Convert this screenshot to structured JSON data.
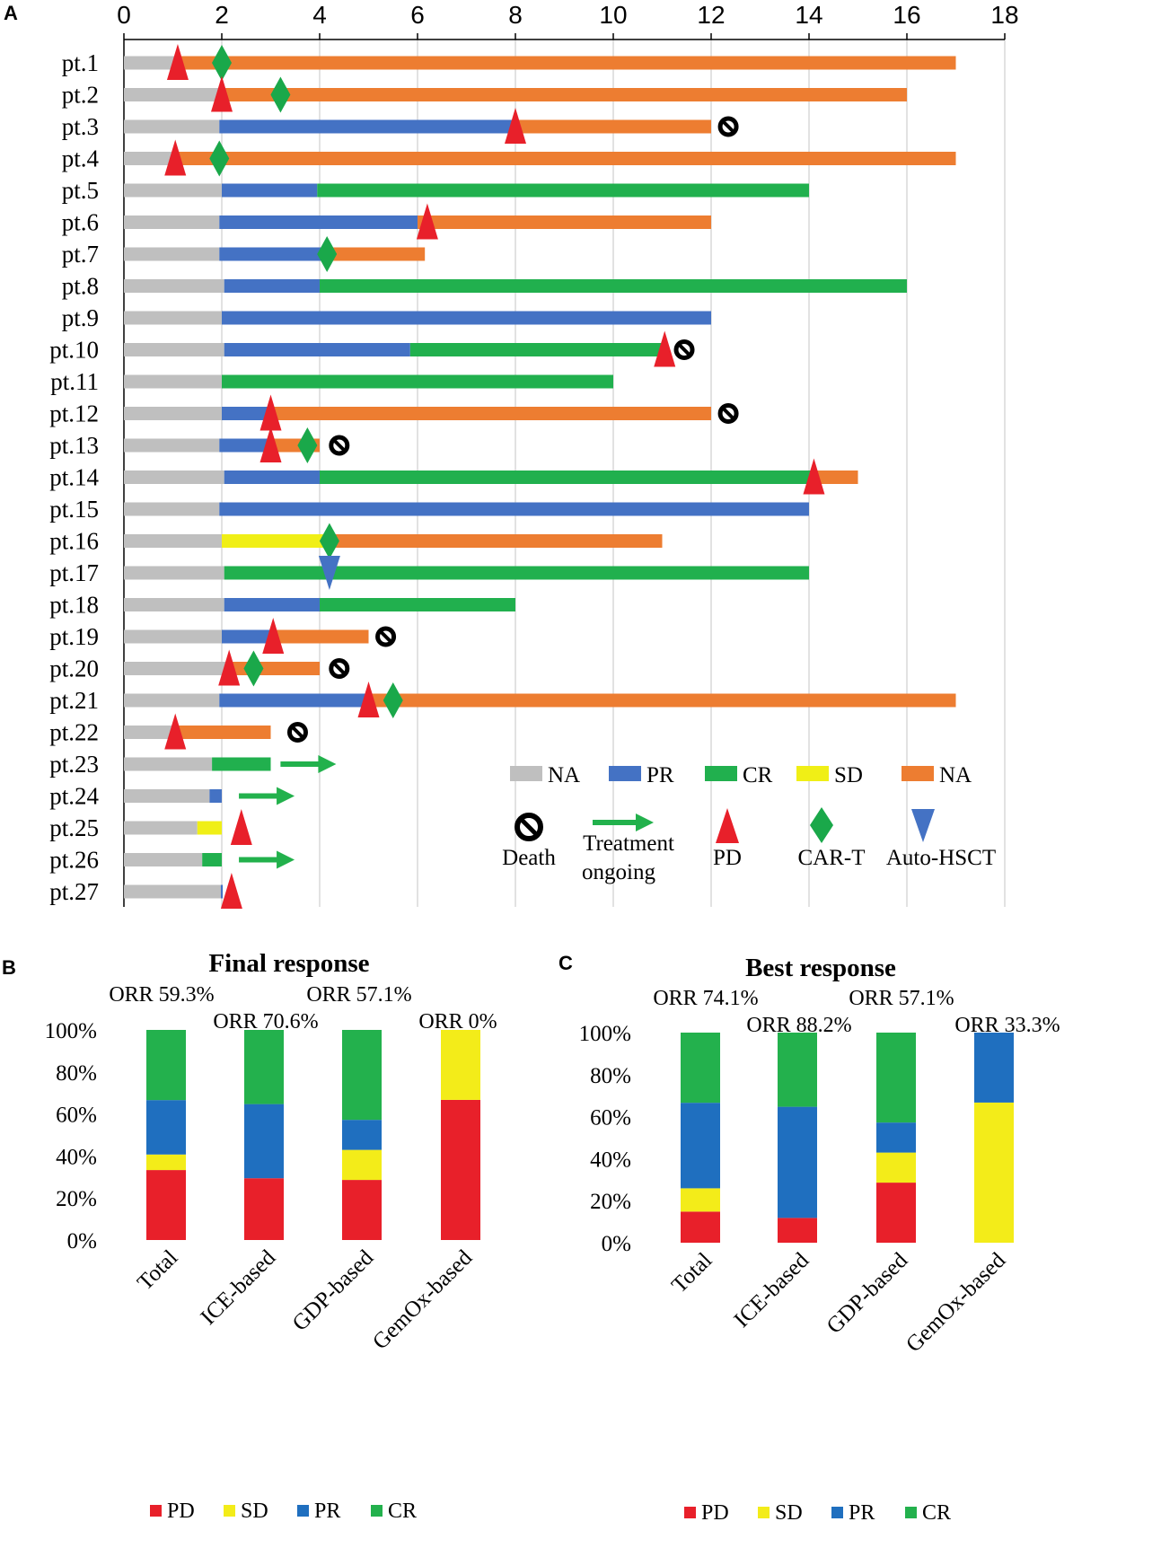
{
  "panels": {
    "a": "A",
    "b": "B",
    "c": "C"
  },
  "colors": {
    "NA_gray": "#bfbfbf",
    "PR": "#4472c4",
    "CR": "#21b04e",
    "SD": "#f0ef16",
    "NA_orange": "#ed7d31",
    "PD": "#e8202a",
    "CART": "#1aa84a",
    "AutoHSCT": "#4472c4",
    "PR_bar": "#1f6fbf",
    "PD_bar": "#e8202a",
    "CR_bar": "#23b14d",
    "SD_bar": "#f3ec19"
  },
  "chart_data": [
    {
      "type": "timeline",
      "panel": "A",
      "x_ticks": [
        "0",
        "2",
        "4",
        "6",
        "8",
        "10",
        "12",
        "14",
        "16",
        "18"
      ],
      "xlim": [
        0,
        18
      ],
      "patients": [
        {
          "label": "pt.1",
          "segments": [
            {
              "s": "NA_gray",
              "from": 0,
              "to": 1.05
            },
            {
              "s": "NA_orange",
              "from": 1.05,
              "to": 17
            }
          ],
          "markers": [
            {
              "type": "PD",
              "x": 1.1
            },
            {
              "type": "CART",
              "x": 2.0
            }
          ]
        },
        {
          "label": "pt.2",
          "segments": [
            {
              "s": "NA_gray",
              "from": 0,
              "to": 2.0
            },
            {
              "s": "NA_orange",
              "from": 2.0,
              "to": 16
            }
          ],
          "markers": [
            {
              "type": "PD",
              "x": 2.0
            },
            {
              "type": "CART",
              "x": 3.2
            }
          ]
        },
        {
          "label": "pt.3",
          "segments": [
            {
              "s": "NA_gray",
              "from": 0,
              "to": 1.95
            },
            {
              "s": "PR",
              "from": 1.95,
              "to": 8
            },
            {
              "s": "NA_orange",
              "from": 8,
              "to": 12
            }
          ],
          "markers": [
            {
              "type": "PD",
              "x": 8.0
            },
            {
              "type": "Death",
              "x": 12.35
            }
          ]
        },
        {
          "label": "pt.4",
          "segments": [
            {
              "s": "NA_gray",
              "from": 0,
              "to": 1.05
            },
            {
              "s": "NA_orange",
              "from": 1.05,
              "to": 17
            }
          ],
          "markers": [
            {
              "type": "PD",
              "x": 1.05
            },
            {
              "type": "CART",
              "x": 1.95
            }
          ]
        },
        {
          "label": "pt.5",
          "segments": [
            {
              "s": "NA_gray",
              "from": 0,
              "to": 2.0
            },
            {
              "s": "PR",
              "from": 2.0,
              "to": 3.95
            },
            {
              "s": "CR",
              "from": 3.95,
              "to": 14
            }
          ],
          "markers": []
        },
        {
          "label": "pt.6",
          "segments": [
            {
              "s": "NA_gray",
              "from": 0,
              "to": 1.95
            },
            {
              "s": "PR",
              "from": 1.95,
              "to": 6.0
            },
            {
              "s": "NA_orange",
              "from": 6.0,
              "to": 12
            }
          ],
          "markers": [
            {
              "type": "PD",
              "x": 6.2
            }
          ]
        },
        {
          "label": "pt.7",
          "segments": [
            {
              "s": "NA_gray",
              "from": 0,
              "to": 1.95
            },
            {
              "s": "PR",
              "from": 1.95,
              "to": 4.2
            },
            {
              "s": "NA_orange",
              "from": 4.2,
              "to": 6.15
            }
          ],
          "markers": [
            {
              "type": "CART",
              "x": 4.15
            }
          ]
        },
        {
          "label": "pt.8",
          "segments": [
            {
              "s": "NA_gray",
              "from": 0,
              "to": 2.05
            },
            {
              "s": "PR",
              "from": 2.05,
              "to": 4.0
            },
            {
              "s": "CR",
              "from": 4.0,
              "to": 16
            }
          ],
          "markers": []
        },
        {
          "label": "pt.9",
          "segments": [
            {
              "s": "NA_gray",
              "from": 0,
              "to": 2.0
            },
            {
              "s": "PR",
              "from": 2.0,
              "to": 12
            }
          ],
          "markers": []
        },
        {
          "label": "pt.10",
          "segments": [
            {
              "s": "NA_gray",
              "from": 0,
              "to": 2.05
            },
            {
              "s": "PR",
              "from": 2.05,
              "to": 5.85
            },
            {
              "s": "CR",
              "from": 5.85,
              "to": 11
            }
          ],
          "markers": [
            {
              "type": "PD",
              "x": 11.05
            },
            {
              "type": "Death",
              "x": 11.45
            }
          ]
        },
        {
          "label": "pt.11",
          "segments": [
            {
              "s": "NA_gray",
              "from": 0,
              "to": 2.0
            },
            {
              "s": "CR",
              "from": 2.0,
              "to": 10
            }
          ],
          "markers": []
        },
        {
          "label": "pt.12",
          "segments": [
            {
              "s": "NA_gray",
              "from": 0,
              "to": 2.0
            },
            {
              "s": "PR",
              "from": 2.0,
              "to": 3.0
            },
            {
              "s": "NA_orange",
              "from": 3.0,
              "to": 12
            }
          ],
          "markers": [
            {
              "type": "PD",
              "x": 3.0
            },
            {
              "type": "Death",
              "x": 12.35
            }
          ]
        },
        {
          "label": "pt.13",
          "segments": [
            {
              "s": "NA_gray",
              "from": 0,
              "to": 1.95
            },
            {
              "s": "PR",
              "from": 1.95,
              "to": 3.0
            },
            {
              "s": "NA_orange",
              "from": 3.0,
              "to": 4.0
            }
          ],
          "markers": [
            {
              "type": "PD",
              "x": 3.0
            },
            {
              "type": "CART",
              "x": 3.75
            },
            {
              "type": "Death",
              "x": 4.4
            }
          ]
        },
        {
          "label": "pt.14",
          "segments": [
            {
              "s": "NA_gray",
              "from": 0,
              "to": 2.05
            },
            {
              "s": "PR",
              "from": 2.05,
              "to": 4.0
            },
            {
              "s": "CR",
              "from": 4.0,
              "to": 14.1
            },
            {
              "s": "NA_orange",
              "from": 14.1,
              "to": 15
            }
          ],
          "markers": [
            {
              "type": "PD",
              "x": 14.1
            }
          ]
        },
        {
          "label": "pt.15",
          "segments": [
            {
              "s": "NA_gray",
              "from": 0,
              "to": 1.95
            },
            {
              "s": "PR",
              "from": 1.95,
              "to": 14
            }
          ],
          "markers": []
        },
        {
          "label": "pt.16",
          "segments": [
            {
              "s": "NA_gray",
              "from": 0,
              "to": 2.0
            },
            {
              "s": "SD",
              "from": 2.0,
              "to": 4.2
            },
            {
              "s": "NA_orange",
              "from": 4.2,
              "to": 11
            }
          ],
          "markers": [
            {
              "type": "CART",
              "x": 4.2
            }
          ]
        },
        {
          "label": "pt.17",
          "segments": [
            {
              "s": "NA_gray",
              "from": 0,
              "to": 2.05
            },
            {
              "s": "CR",
              "from": 2.05,
              "to": 14
            }
          ],
          "markers": [
            {
              "type": "AutoHSCT",
              "x": 4.2
            }
          ]
        },
        {
          "label": "pt.18",
          "segments": [
            {
              "s": "NA_gray",
              "from": 0,
              "to": 2.05
            },
            {
              "s": "PR",
              "from": 2.05,
              "to": 4.0
            },
            {
              "s": "CR",
              "from": 4.0,
              "to": 8
            }
          ],
          "markers": []
        },
        {
          "label": "pt.19",
          "segments": [
            {
              "s": "NA_gray",
              "from": 0,
              "to": 2.0
            },
            {
              "s": "PR",
              "from": 2.0,
              "to": 3.1
            },
            {
              "s": "NA_orange",
              "from": 3.1,
              "to": 5
            }
          ],
          "markers": [
            {
              "type": "PD",
              "x": 3.05
            },
            {
              "type": "Death",
              "x": 5.35
            }
          ]
        },
        {
          "label": "pt.20",
          "segments": [
            {
              "s": "NA_gray",
              "from": 0,
              "to": 2.15
            },
            {
              "s": "NA_orange",
              "from": 2.15,
              "to": 4
            }
          ],
          "markers": [
            {
              "type": "PD",
              "x": 2.15
            },
            {
              "type": "CART",
              "x": 2.65
            },
            {
              "type": "Death",
              "x": 4.4
            }
          ]
        },
        {
          "label": "pt.21",
          "segments": [
            {
              "s": "NA_gray",
              "from": 0,
              "to": 1.95
            },
            {
              "s": "PR",
              "from": 1.95,
              "to": 5.0
            },
            {
              "s": "NA_orange",
              "from": 5.0,
              "to": 17
            }
          ],
          "markers": [
            {
              "type": "PD",
              "x": 5.0
            },
            {
              "type": "CART",
              "x": 5.5
            }
          ]
        },
        {
          "label": "pt.22",
          "segments": [
            {
              "s": "NA_gray",
              "from": 0,
              "to": 1.05
            },
            {
              "s": "NA_orange",
              "from": 1.05,
              "to": 3
            }
          ],
          "markers": [
            {
              "type": "PD",
              "x": 1.05
            },
            {
              "type": "Death",
              "x": 3.55
            }
          ]
        },
        {
          "label": "pt.23",
          "segments": [
            {
              "s": "NA_gray",
              "from": 0,
              "to": 1.8
            },
            {
              "s": "CR",
              "from": 1.8,
              "to": 3
            }
          ],
          "markers": [
            {
              "type": "Ongoing",
              "x": 3.2
            }
          ]
        },
        {
          "label": "pt.24",
          "segments": [
            {
              "s": "NA_gray",
              "from": 0,
              "to": 1.75
            },
            {
              "s": "PR",
              "from": 1.75,
              "to": 2.0
            }
          ],
          "markers": [
            {
              "type": "Ongoing",
              "x": 2.35
            }
          ]
        },
        {
          "label": "pt.25",
          "segments": [
            {
              "s": "NA_gray",
              "from": 0,
              "to": 1.5
            },
            {
              "s": "SD",
              "from": 1.5,
              "to": 2.0
            }
          ],
          "markers": [
            {
              "type": "PD",
              "x": 2.4
            }
          ]
        },
        {
          "label": "pt.26",
          "segments": [
            {
              "s": "NA_gray",
              "from": 0,
              "to": 1.6
            },
            {
              "s": "CR",
              "from": 1.6,
              "to": 2.0
            }
          ],
          "markers": [
            {
              "type": "Ongoing",
              "x": 2.35
            }
          ]
        },
        {
          "label": "pt.27",
          "segments": [
            {
              "s": "NA_gray",
              "from": 0,
              "to": 1.98
            },
            {
              "s": "PR",
              "from": 1.98,
              "to": 2.02
            }
          ],
          "markers": [
            {
              "type": "PD",
              "x": 2.2
            }
          ]
        }
      ],
      "legend": {
        "NA_gray": "NA",
        "PR": "PR",
        "CR": "CR",
        "SD": "SD",
        "NA_orange": "NA",
        "Death": "Death",
        "Ongoing_1": "Treatment",
        "Ongoing_2": "ongoing",
        "PD": "PD",
        "CART": "CAR-T",
        "AutoHSCT": "Auto-HSCT"
      }
    },
    {
      "type": "stacked-bar",
      "panel": "B",
      "title": "Final response",
      "categories": [
        "Total",
        "ICE-based",
        "GDP-based",
        "GemOx-based"
      ],
      "orr_labels": [
        "ORR 59.3%",
        "ORR 70.6%",
        "ORR 57.1%",
        "ORR 0%"
      ],
      "y_ticks": [
        "0%",
        "20%",
        "40%",
        "60%",
        "80%",
        "100%"
      ],
      "ylim": [
        0,
        100
      ],
      "series": [
        {
          "name": "PD",
          "values": [
            33.3,
            29.4,
            28.6,
            66.7
          ]
        },
        {
          "name": "SD",
          "values": [
            7.4,
            0,
            14.3,
            33.3
          ]
        },
        {
          "name": "PR",
          "values": [
            25.9,
            35.3,
            14.3,
            0
          ]
        },
        {
          "name": "CR",
          "values": [
            33.4,
            35.3,
            42.8,
            0
          ]
        }
      ]
    },
    {
      "type": "stacked-bar",
      "panel": "C",
      "title": "Best response",
      "categories": [
        "Total",
        "ICE-based",
        "GDP-based",
        "GemOx-based"
      ],
      "orr_labels": [
        "ORR 74.1%",
        "ORR 88.2%",
        "ORR 57.1%",
        "ORR 33.3%"
      ],
      "y_ticks": [
        "0%",
        "20%",
        "40%",
        "60%",
        "80%",
        "100%"
      ],
      "ylim": [
        0,
        100
      ],
      "series": [
        {
          "name": "PD",
          "values": [
            14.8,
            11.8,
            28.6,
            0
          ]
        },
        {
          "name": "SD",
          "values": [
            11.1,
            0,
            14.3,
            66.7
          ]
        },
        {
          "name": "PR",
          "values": [
            40.7,
            52.9,
            14.3,
            33.3
          ]
        },
        {
          "name": "CR",
          "values": [
            33.4,
            35.3,
            42.8,
            0
          ]
        }
      ]
    }
  ]
}
